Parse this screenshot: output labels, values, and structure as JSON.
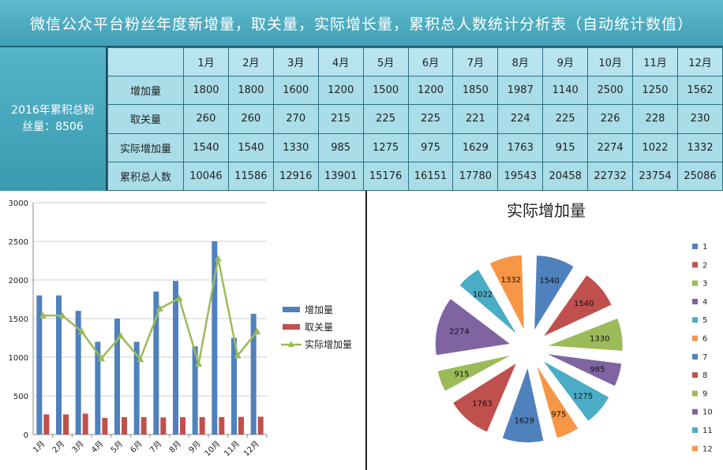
{
  "title": "微信公众平台粉丝年度新增量，取关量，实际增长量，累积总人数统计分析表（自动统计数值）",
  "total_label": "2016年累积总粉丝量：8506",
  "table": {
    "months": [
      "1月",
      "2月",
      "3月",
      "4月",
      "5月",
      "6月",
      "7月",
      "8月",
      "9月",
      "10月",
      "11月",
      "12月"
    ],
    "rows": [
      {
        "label": "增加量",
        "values": [
          1800,
          1800,
          1600,
          1200,
          1500,
          1200,
          1850,
          1987,
          1140,
          2500,
          1250,
          1562
        ]
      },
      {
        "label": "取关量",
        "values": [
          260,
          260,
          270,
          215,
          225,
          225,
          221,
          224,
          225,
          226,
          228,
          230
        ]
      },
      {
        "label": "实际增加量",
        "values": [
          1540,
          1540,
          1330,
          985,
          1275,
          975,
          1629,
          1763,
          915,
          2274,
          1022,
          1332
        ]
      },
      {
        "label": "累积总人数",
        "values": [
          10046,
          11586,
          12916,
          13901,
          15176,
          16151,
          17780,
          19543,
          20458,
          22732,
          23754,
          25086
        ]
      }
    ]
  },
  "chart_data": [
    {
      "type": "bar",
      "categories": [
        "1月",
        "2月",
        "3月",
        "4月",
        "5月",
        "6月",
        "7月",
        "8月",
        "9月",
        "10月",
        "11月",
        "12月"
      ],
      "series": [
        {
          "name": "增加量",
          "kind": "bar",
          "color": "#4f81bd",
          "values": [
            1800,
            1800,
            1600,
            1200,
            1500,
            1200,
            1850,
            1987,
            1140,
            2500,
            1250,
            1562
          ]
        },
        {
          "name": "取关量",
          "kind": "bar",
          "color": "#c0504d",
          "values": [
            260,
            260,
            270,
            215,
            225,
            225,
            221,
            224,
            225,
            226,
            228,
            230
          ]
        },
        {
          "name": "实际增加量",
          "kind": "line",
          "color": "#9bbb59",
          "values": [
            1540,
            1540,
            1330,
            985,
            1275,
            975,
            1629,
            1763,
            915,
            2274,
            1022,
            1332
          ]
        }
      ],
      "ylim": [
        0,
        3000
      ],
      "yticks": [
        0,
        500,
        1000,
        1500,
        2000,
        2500,
        3000
      ],
      "grid": true,
      "legend_position": "right"
    },
    {
      "type": "pie",
      "title": "实际增加量",
      "labels": [
        "1",
        "2",
        "3",
        "4",
        "5",
        "6",
        "7",
        "8",
        "9",
        "10",
        "11",
        "12"
      ],
      "values": [
        1540,
        1540,
        1330,
        985,
        1275,
        975,
        1629,
        1763,
        915,
        2274,
        1022,
        1332
      ],
      "colors": [
        "#4f81bd",
        "#c0504d",
        "#9bbb59",
        "#8064a2",
        "#4bacc6",
        "#f79646",
        "#4f81bd",
        "#c0504d",
        "#9bbb59",
        "#8064a2",
        "#4bacc6",
        "#f79646"
      ],
      "legend_position": "right"
    }
  ]
}
